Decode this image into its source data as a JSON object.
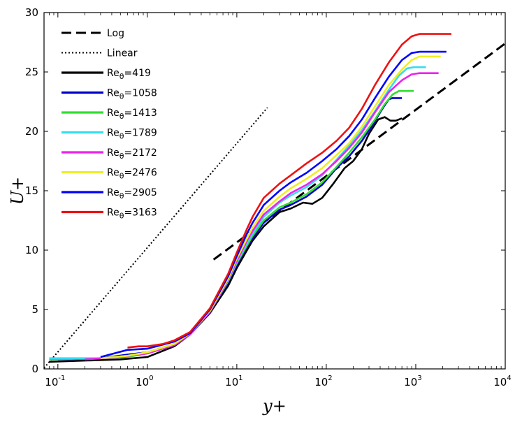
{
  "chart_data": {
    "type": "line",
    "title": "",
    "xlabel": "y+",
    "ylabel": "U+",
    "xscale": "log",
    "xlim": [
      0.07,
      10000
    ],
    "ylim": [
      0,
      30
    ],
    "yticks": [
      0,
      5,
      10,
      15,
      20,
      25,
      30
    ],
    "xticks": [
      {
        "value": 0.1,
        "base": "10",
        "exp": "-1"
      },
      {
        "value": 1,
        "base": "10",
        "exp": "0"
      },
      {
        "value": 10,
        "base": "10",
        "exp": "1"
      },
      {
        "value": 100,
        "base": "10",
        "exp": "2"
      },
      {
        "value": 1000,
        "base": "10",
        "exp": "3"
      },
      {
        "value": 10000,
        "base": "10",
        "exp": "4"
      }
    ],
    "legend_position": "top-left",
    "reference_lines": [
      {
        "name": "Log",
        "style": "dashed",
        "color": "#000000",
        "x": [
          5.5,
          10000
        ],
        "y": [
          9.2,
          27.4
        ]
      },
      {
        "name": "Linear",
        "style": "dotted",
        "color": "#000000",
        "x": [
          0.07,
          22
        ],
        "y": [
          0.07,
          22
        ]
      }
    ],
    "series": [
      {
        "name": "Re",
        "sub": "θ",
        "label_value": "=419",
        "color": "#000000",
        "x": [
          0.08,
          0.2,
          0.5,
          1,
          2,
          3,
          5,
          8,
          10,
          13,
          15,
          20,
          30,
          40,
          55,
          70,
          90,
          120,
          160,
          200,
          250,
          300,
          380,
          450,
          520,
          600,
          700
        ],
        "y": [
          0.6,
          0.7,
          0.8,
          1.0,
          1.9,
          2.9,
          4.7,
          7.0,
          8.5,
          10.0,
          10.8,
          12.0,
          13.2,
          13.5,
          14.0,
          13.9,
          14.4,
          15.6,
          16.9,
          17.5,
          18.5,
          19.8,
          21.0,
          21.2,
          20.9,
          20.9,
          21.1
        ]
      },
      {
        "name": "Re",
        "sub": "θ",
        "label_value": "=1058",
        "color": "#0000cc",
        "x": [
          0.1,
          0.3,
          0.6,
          1,
          2,
          3,
          5,
          8,
          10,
          13,
          15,
          20,
          30,
          40,
          60,
          90,
          130,
          180,
          250,
          320,
          400,
          450,
          500,
          550,
          600,
          650,
          700
        ],
        "y": [
          0.8,
          0.9,
          1.2,
          1.4,
          2.1,
          2.9,
          4.8,
          7.3,
          8.8,
          10.3,
          11.0,
          12.3,
          13.4,
          13.8,
          14.5,
          15.5,
          16.9,
          17.9,
          19.2,
          20.4,
          21.6,
          22.2,
          22.7,
          22.8,
          22.8,
          22.8,
          22.8
        ]
      },
      {
        "name": "Re",
        "sub": "θ",
        "label_value": "=1413",
        "color": "#33dd33",
        "x": [
          0.08,
          0.3,
          0.6,
          1,
          2,
          3,
          5,
          8,
          10,
          13,
          15,
          20,
          30,
          40,
          60,
          90,
          130,
          180,
          250,
          350,
          450,
          550,
          650,
          750,
          850,
          950
        ],
        "y": [
          0.8,
          0.9,
          1.0,
          1.3,
          2.0,
          2.9,
          4.8,
          7.4,
          8.9,
          10.4,
          11.2,
          12.5,
          13.6,
          14.0,
          14.7,
          15.7,
          17.0,
          18.2,
          19.5,
          21.0,
          22.3,
          23.1,
          23.4,
          23.4,
          23.4,
          23.4
        ]
      },
      {
        "name": "Re",
        "sub": "θ",
        "label_value": "=1789",
        "color": "#33ddee",
        "x": [
          0.08,
          0.3,
          0.6,
          1,
          2,
          3,
          5,
          8,
          10,
          13,
          15,
          20,
          30,
          40,
          60,
          90,
          130,
          180,
          250,
          350,
          500,
          650,
          800,
          950,
          1100,
          1300
        ],
        "y": [
          0.9,
          0.9,
          1.1,
          1.4,
          2.1,
          3.0,
          4.9,
          7.4,
          9.0,
          10.6,
          11.4,
          12.8,
          14.0,
          14.6,
          15.3,
          16.3,
          17.6,
          18.8,
          20.1,
          21.7,
          23.5,
          24.7,
          25.3,
          25.4,
          25.4,
          25.4
        ]
      },
      {
        "name": "Re",
        "sub": "θ",
        "label_value": "=2172",
        "color": "#ee22ee",
        "x": [
          0.2,
          0.5,
          1,
          2,
          3,
          5,
          8,
          10,
          13,
          15,
          20,
          30,
          40,
          60,
          90,
          130,
          180,
          250,
          350,
          500,
          700,
          900,
          1100,
          1300,
          1500,
          1800
        ],
        "y": [
          0.8,
          1.0,
          1.3,
          2.0,
          2.9,
          4.8,
          7.5,
          9.1,
          10.8,
          11.6,
          13.0,
          14.1,
          14.8,
          15.5,
          16.4,
          17.5,
          18.6,
          19.9,
          21.6,
          23.3,
          24.3,
          24.8,
          24.9,
          24.9,
          24.9,
          24.9
        ]
      },
      {
        "name": "Re",
        "sub": "θ",
        "label_value": "=2476",
        "color": "#eeee22",
        "x": [
          0.3,
          0.6,
          1,
          2,
          3,
          5,
          8,
          10,
          13,
          15,
          20,
          30,
          40,
          60,
          90,
          130,
          180,
          250,
          350,
          500,
          700,
          900,
          1100,
          1300,
          1600,
          1900
        ],
        "y": [
          0.9,
          1.1,
          1.4,
          2.1,
          3.0,
          4.9,
          7.6,
          9.3,
          11.0,
          11.9,
          13.3,
          14.5,
          15.2,
          16.0,
          16.9,
          18.0,
          19.0,
          20.4,
          22.1,
          23.9,
          25.2,
          26.0,
          26.3,
          26.3,
          26.3,
          26.3
        ]
      },
      {
        "name": "Re",
        "sub": "θ",
        "label_value": "=2905",
        "color": "#0000ff",
        "x": [
          0.3,
          0.6,
          1,
          2,
          3,
          5,
          8,
          10,
          13,
          15,
          20,
          30,
          40,
          60,
          90,
          130,
          180,
          250,
          350,
          500,
          700,
          900,
          1100,
          1400,
          1800,
          2200
        ],
        "y": [
          1.0,
          1.6,
          1.7,
          2.3,
          3.0,
          5.0,
          7.8,
          9.5,
          11.4,
          12.3,
          13.8,
          15.0,
          15.7,
          16.5,
          17.5,
          18.5,
          19.6,
          21.0,
          22.8,
          24.6,
          26.0,
          26.6,
          26.7,
          26.7,
          26.7,
          26.7
        ]
      },
      {
        "name": "Re",
        "sub": "θ",
        "label_value": "=3163",
        "color": "#ee1111",
        "x": [
          0.6,
          0.8,
          1,
          1.5,
          2,
          3,
          5,
          8,
          10,
          13,
          15,
          20,
          30,
          40,
          60,
          90,
          130,
          180,
          250,
          350,
          500,
          700,
          900,
          1100,
          1400,
          1800,
          2500
        ],
        "y": [
          1.8,
          1.9,
          1.9,
          2.1,
          2.4,
          3.1,
          5.1,
          8.0,
          9.8,
          11.8,
          12.8,
          14.4,
          15.6,
          16.3,
          17.3,
          18.2,
          19.2,
          20.3,
          21.9,
          23.9,
          25.8,
          27.3,
          28.0,
          28.2,
          28.2,
          28.2,
          28.2
        ]
      }
    ]
  }
}
